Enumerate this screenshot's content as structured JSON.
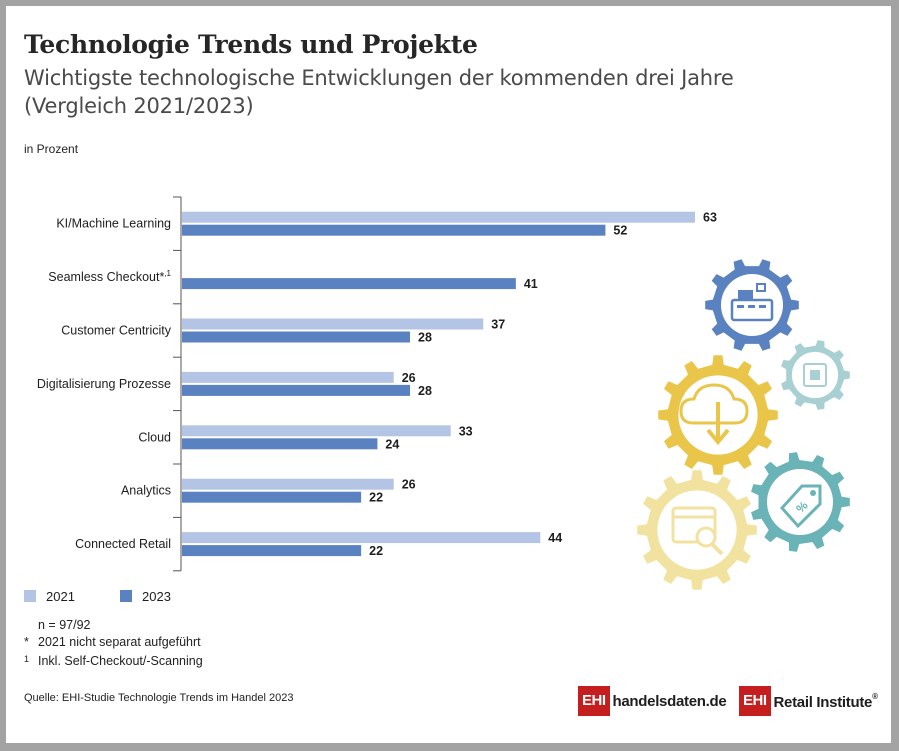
{
  "title": "Technologie Trends und Projekte",
  "subtitle": "Wichtigste technologische Entwicklungen der kommenden drei Jahre (Vergleich 2021/2023)",
  "unit_label": "in Prozent",
  "colors": {
    "y2021": "#b4c4e4",
    "y2023": "#5b82c0",
    "axis": "#555555",
    "brand": "#c41e1e"
  },
  "chart_data": {
    "type": "bar",
    "orientation": "horizontal",
    "categories": [
      "KI/Machine Learning",
      "Seamless Checkout*,1",
      "Customer Centricity",
      "Digitalisierung Prozesse",
      "Cloud",
      "Analytics",
      "Connected Retail"
    ],
    "series": [
      {
        "name": "2021",
        "values": [
          63,
          null,
          37,
          26,
          33,
          26,
          44
        ]
      },
      {
        "name": "2023",
        "values": [
          52,
          41,
          28,
          28,
          24,
          22,
          22
        ]
      }
    ],
    "xlim": [
      0,
      70
    ],
    "grid": false,
    "legend_position": "bottom-left"
  },
  "legend": [
    {
      "label": "2021"
    },
    {
      "label": "2023"
    }
  ],
  "notes": [
    {
      "mark": "",
      "text": "n = 97/92"
    },
    {
      "mark": "*",
      "text": "2021 nicht separat aufgeführt"
    },
    {
      "mark": "1",
      "text": "Inkl. Self-Checkout/-Scanning"
    }
  ],
  "source": "Quelle: EHI-Studie Technologie Trends im Handel 2023",
  "logos": [
    {
      "box": "EHI",
      "text": "handelsdaten.de",
      "reg": ""
    },
    {
      "box": "EHI",
      "text": "Retail Institute",
      "reg": "®"
    }
  ],
  "illustration": {
    "icons": [
      "cash-register-icon",
      "chip-icon",
      "cloud-download-icon",
      "browser-search-icon",
      "price-tag-icon"
    ],
    "gear_colors": [
      "#5b82c0",
      "#a8d0d3",
      "#e9c64a",
      "#f2e2a0",
      "#6ab3b7"
    ]
  }
}
